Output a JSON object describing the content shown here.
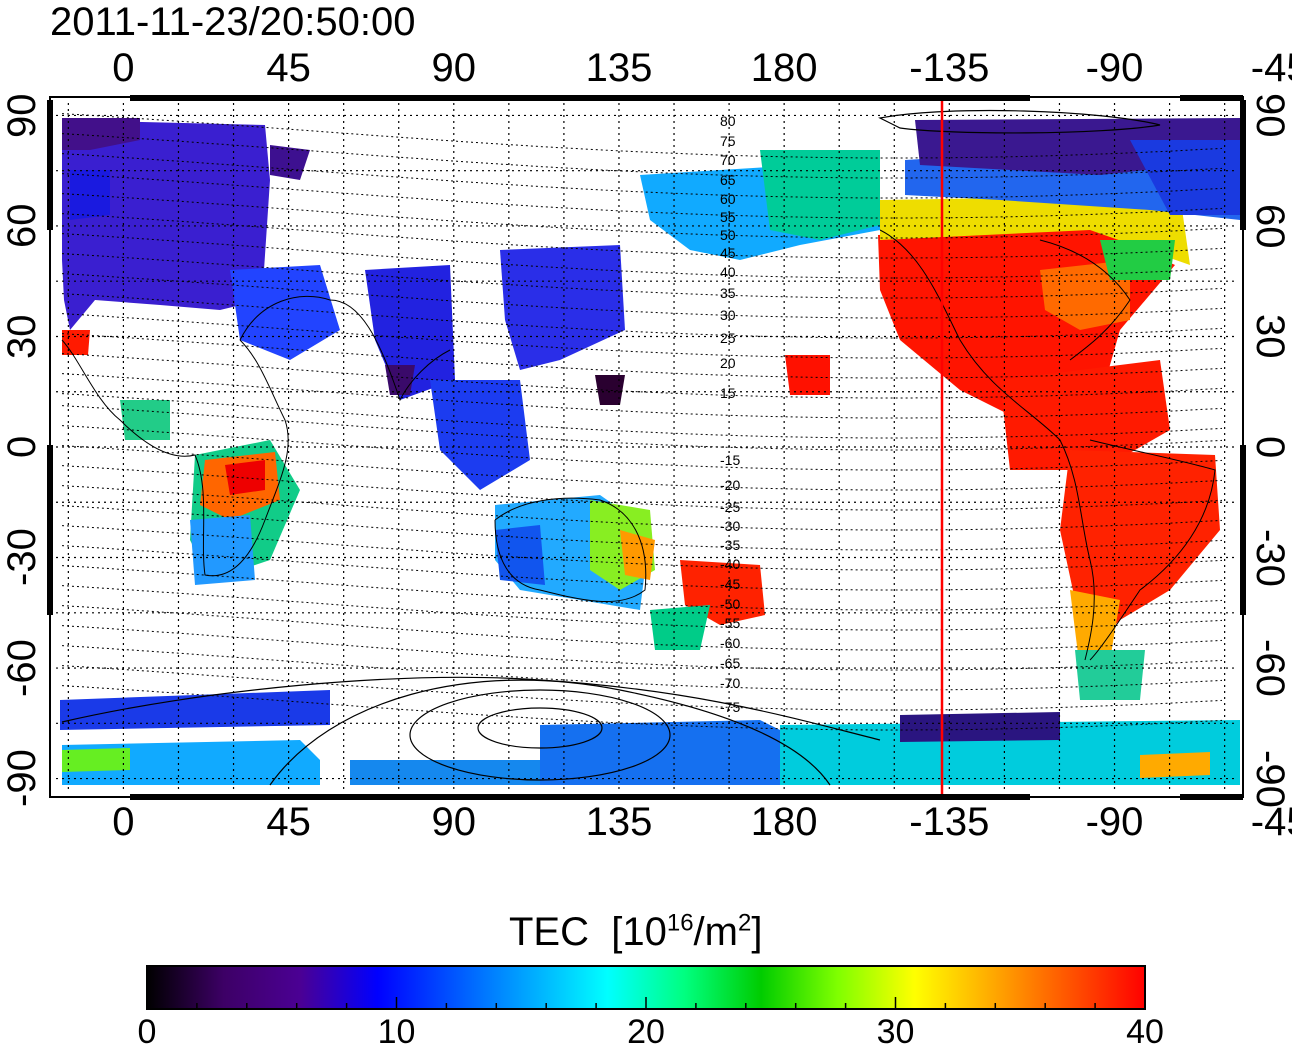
{
  "timestamp": "2011-11-23/20:50:00",
  "top_lon_ticks": [
    "0",
    "45",
    "90",
    "135",
    "180",
    "-135",
    "-90",
    "-45"
  ],
  "bottom_lon_ticks": [
    "0",
    "45",
    "90",
    "135",
    "180",
    "-135",
    "-90",
    "-45"
  ],
  "left_lat_ticks": [
    "90",
    "60",
    "30",
    "0",
    "-30",
    "-60",
    "-90"
  ],
  "right_lat_ticks": [
    "90",
    "60",
    "30",
    "0",
    "-30",
    "-60",
    "-90"
  ],
  "contour_labels": [
    "80",
    "75",
    "70",
    "65",
    "60",
    "55",
    "50",
    "45",
    "40",
    "35",
    "30",
    "25",
    "20",
    "15",
    "-15",
    "-20",
    "-25",
    "-30",
    "-35",
    "-40",
    "-45",
    "-50",
    "-55",
    "-60",
    "-65",
    "-70",
    "-75"
  ],
  "colorbar": {
    "title": "TEC",
    "unit_base": "[10",
    "unit_exp": "16",
    "unit_mid": "/m",
    "unit_exp2": "2",
    "unit_close": "]",
    "ticks": [
      "0",
      "10",
      "20",
      "30",
      "40"
    ],
    "min": 0,
    "max": 40,
    "colors": [
      "#000000",
      "#3d0066",
      "#4b0094",
      "#0000ff",
      "#0055ff",
      "#00aaff",
      "#00ffff",
      "#00ff80",
      "#00cc00",
      "#80ff00",
      "#ffff00",
      "#ffaa00",
      "#ff5500",
      "#ff0000"
    ]
  },
  "map": {
    "lon_range": [
      -20,
      305
    ],
    "lat_range": [
      -95,
      95
    ],
    "terminator_lon": -137,
    "terminator_color": "#ff0000"
  },
  "chart_data": {
    "type": "heatmap",
    "title": "2011-11-23/20:50:00",
    "value_label": "TEC [10^16/m^2]",
    "value_range": [
      0,
      40
    ],
    "regions": [
      {
        "lon": [
          -20,
          40
        ],
        "lat": [
          40,
          88
        ],
        "value": 6
      },
      {
        "lon": [
          40,
          100
        ],
        "lat": [
          60,
          85
        ],
        "value": 4
      },
      {
        "lon": [
          20,
          60
        ],
        "lat": [
          -35,
          0
        ],
        "value": 18
      },
      {
        "lon": [
          20,
          45
        ],
        "lat": [
          -15,
          -5
        ],
        "value": 36
      },
      {
        "lon": [
          110,
          155
        ],
        "lat": [
          -40,
          -10
        ],
        "value": 17
      },
      {
        "lon": [
          170,
          190
        ],
        "lat": [
          -50,
          -35
        ],
        "value": 37
      },
      {
        "lon": [
          225,
          295
        ],
        "lat": [
          -55,
          55
        ],
        "value": 39
      },
      {
        "lon": [
          250,
          305
        ],
        "lat": [
          60,
          88
        ],
        "value": 5
      },
      {
        "lon": [
          -20,
          305
        ],
        "lat": [
          -90,
          -75
        ],
        "value": 14
      }
    ]
  }
}
